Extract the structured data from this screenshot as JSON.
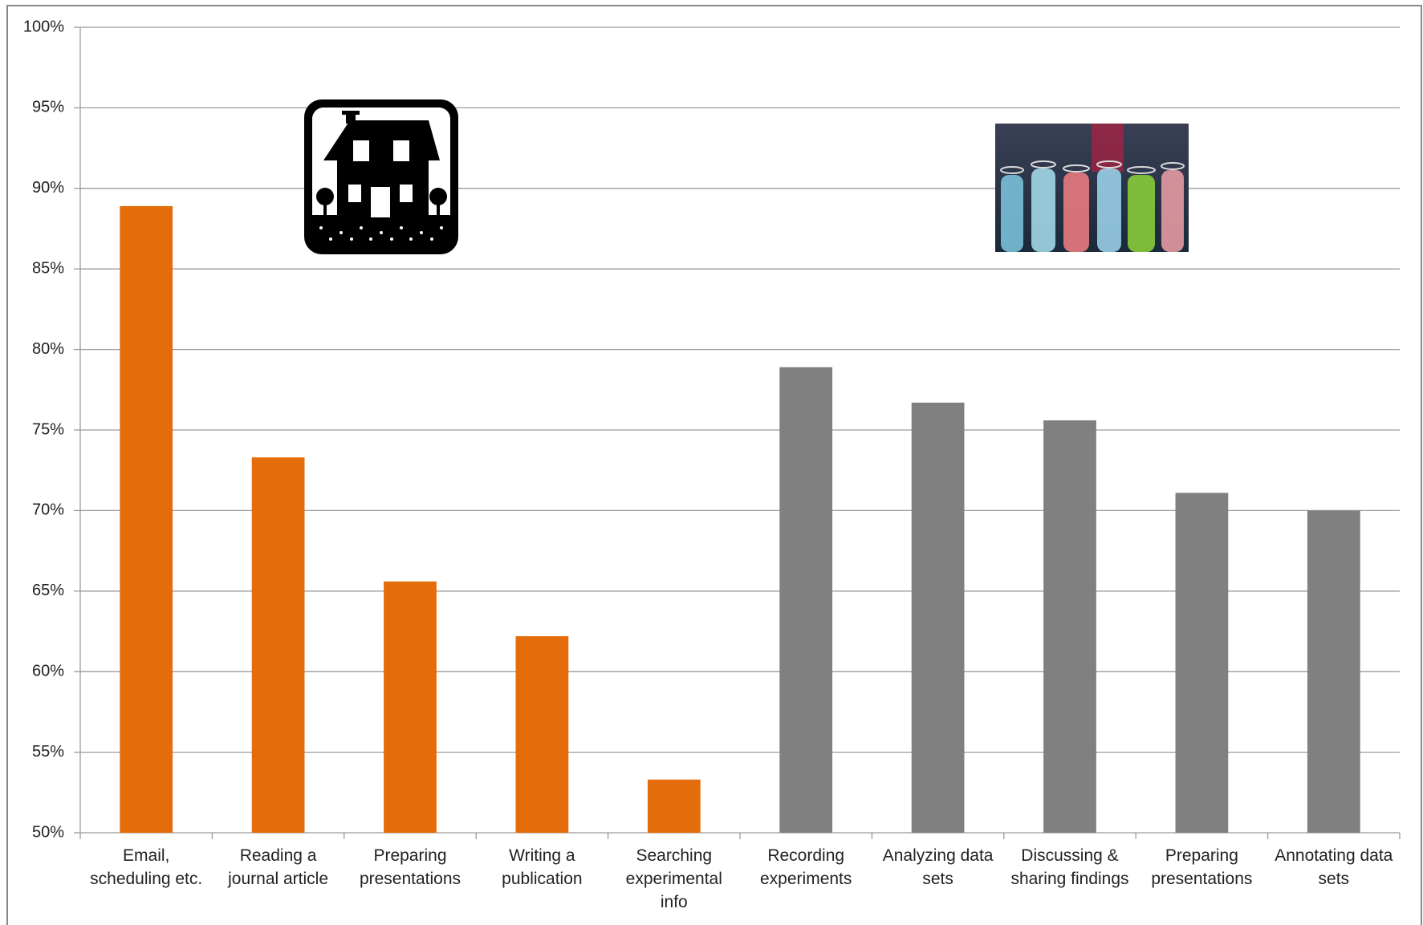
{
  "chart_data": {
    "type": "bar",
    "categories": [
      "Email, scheduling etc.",
      "Reading a journal article",
      "Preparing presentations",
      "Writing a publication",
      "Searching experimental info",
      "Recording experiments",
      "Analyzing data sets",
      "Discussing & sharing findings",
      "Preparing presentations",
      "Annotating data sets"
    ],
    "values": [
      88.9,
      73.3,
      65.6,
      62.2,
      53.3,
      78.9,
      76.7,
      75.6,
      71.1,
      70.0
    ],
    "colors": [
      "#e46c0a",
      "#e46c0a",
      "#e46c0a",
      "#e46c0a",
      "#e46c0a",
      "#808080",
      "#808080",
      "#808080",
      "#808080",
      "#808080"
    ],
    "ylim": [
      50,
      100
    ],
    "yticks": [
      {
        "value": 50,
        "label": "50%"
      },
      {
        "value": 55,
        "label": "55%"
      },
      {
        "value": 60,
        "label": "60%"
      },
      {
        "value": 65,
        "label": "65%"
      },
      {
        "value": 70,
        "label": "70%"
      },
      {
        "value": 75,
        "label": "75%"
      },
      {
        "value": 80,
        "label": "80%"
      },
      {
        "value": 85,
        "label": "85%"
      },
      {
        "value": 90,
        "label": "90%"
      },
      {
        "value": 95,
        "label": "95%"
      },
      {
        "value": 100,
        "label": "100%"
      }
    ],
    "grid": true
  }
}
